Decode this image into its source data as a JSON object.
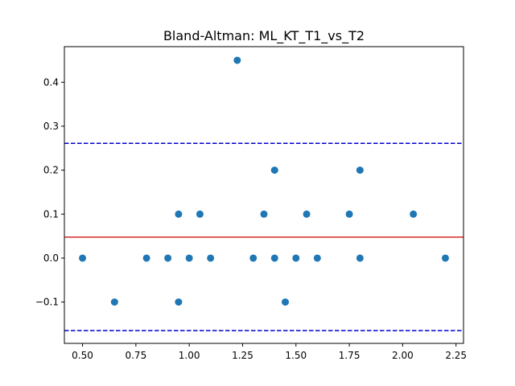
{
  "chart_data": {
    "type": "scatter",
    "title": "Bland-Altman: ML_KT_T1_vs_T2",
    "xlabel": "",
    "ylabel": "",
    "xlim": [
      0.415,
      2.285
    ],
    "ylim": [
      -0.194,
      0.481
    ],
    "xticks": [
      0.5,
      0.75,
      1.0,
      1.25,
      1.5,
      1.75,
      2.0,
      2.25
    ],
    "xtick_labels": [
      "0.50",
      "0.75",
      "1.00",
      "1.25",
      "1.50",
      "1.75",
      "2.00",
      "2.25"
    ],
    "yticks": [
      -0.1,
      0.0,
      0.1,
      0.2,
      0.3,
      0.4
    ],
    "ytick_labels": [
      "−0.1",
      "0.0",
      "0.1",
      "0.2",
      "0.3",
      "0.4"
    ],
    "grid": false,
    "points": {
      "x": [
        0.5,
        0.65,
        0.8,
        0.9,
        0.95,
        0.95,
        1.0,
        1.05,
        1.1,
        1.225,
        1.3,
        1.35,
        1.4,
        1.4,
        1.45,
        1.5,
        1.55,
        1.6,
        1.75,
        1.8,
        1.8,
        2.05,
        2.2
      ],
      "y": [
        0.0,
        -0.1,
        0.0,
        0.0,
        0.1,
        -0.1,
        0.0,
        0.1,
        0.0,
        0.45,
        0.0,
        0.1,
        0.2,
        0.0,
        -0.1,
        0.0,
        0.1,
        0.0,
        0.1,
        0.2,
        0.0,
        0.1,
        0.0
      ],
      "color": "#1f77b4"
    },
    "lines": [
      {
        "name": "mean-difference",
        "y": 0.0478,
        "color": "#d62728",
        "style": "solid"
      },
      {
        "name": "upper-limit-of-agreement",
        "y": 0.261,
        "color": "#0000cc",
        "style": "dashed"
      },
      {
        "name": "lower-limit-of-agreement",
        "y": -0.165,
        "color": "#0000cc",
        "style": "dashed"
      }
    ]
  }
}
